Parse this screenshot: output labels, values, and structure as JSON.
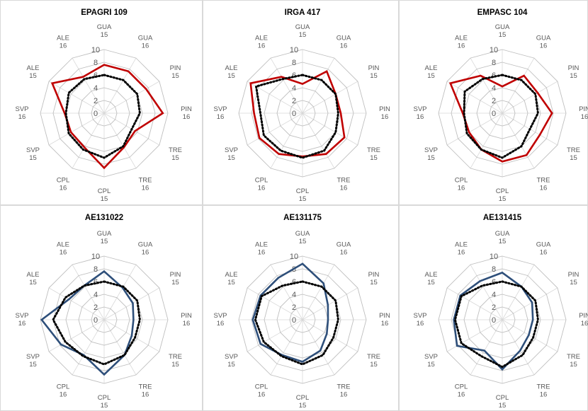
{
  "chart_data": [
    {
      "type": "radar",
      "title": "EPAGRI 109",
      "categories": [
        "GUA\n15",
        "GUA\n16",
        "PIN\n15",
        "PIN\n16",
        "TRE\n15",
        "TRE\n16",
        "CPL\n15",
        "CPL\n16",
        "SVP\n15",
        "SVP\n16",
        "ALE\n15",
        "ALE\n16"
      ],
      "rlim": [
        0,
        10
      ],
      "rticks": [
        0,
        2,
        4,
        6,
        8,
        10
      ],
      "series": [
        {
          "style": "solid",
          "color": "#c00000",
          "values": [
            7.6,
            7.6,
            7.6,
            9.2,
            5.6,
            6.2,
            8.6,
            6.2,
            6.0,
            6.2,
            9.4,
            6.6
          ]
        },
        {
          "style": "dotted",
          "color": "#000000",
          "values": [
            6.0,
            6.0,
            6.0,
            5.6,
            5.0,
            6.0,
            7.0,
            6.6,
            6.4,
            6.0,
            6.4,
            6.2
          ]
        }
      ]
    },
    {
      "type": "radar",
      "title": "IRGA 417",
      "categories": [
        "GUA\n15",
        "GUA\n16",
        "PIN\n15",
        "PIN\n16",
        "TRE\n15",
        "TRE\n16",
        "CPL\n15",
        "CPL\n16",
        "SVP\n15",
        "SVP\n16",
        "ALE\n15",
        "ALE\n16"
      ],
      "rlim": [
        0,
        10
      ],
      "rticks": [
        0,
        2,
        4,
        6,
        8,
        10
      ],
      "series": [
        {
          "style": "solid",
          "color": "#c00000",
          "values": [
            4.6,
            7.6,
            6.0,
            6.0,
            7.6,
            7.4,
            6.8,
            7.4,
            7.8,
            7.6,
            9.4,
            6.6
          ]
        },
        {
          "style": "dotted",
          "color": "#000000",
          "values": [
            6.0,
            6.0,
            6.0,
            5.6,
            6.0,
            6.8,
            7.0,
            6.8,
            7.0,
            6.6,
            8.4,
            6.2
          ]
        }
      ]
    },
    {
      "type": "radar",
      "title": "EMPASC 104",
      "categories": [
        "GUA\n15",
        "GUA\n16",
        "PIN\n15",
        "PIN\n16",
        "TRE\n15",
        "TRE\n16",
        "CPL\n15",
        "CPL\n16",
        "SVP\n15",
        "SVP\n16",
        "ALE\n15",
        "ALE\n16"
      ],
      "rlim": [
        0,
        10
      ],
      "rticks": [
        0,
        2,
        4,
        6,
        8,
        10
      ],
      "series": [
        {
          "style": "solid",
          "color": "#c00000",
          "values": [
            4.2,
            6.8,
            6.4,
            7.8,
            6.8,
            7.6,
            7.6,
            6.6,
            6.0,
            6.2,
            9.4,
            6.8
          ]
        },
        {
          "style": "dotted",
          "color": "#000000",
          "values": [
            6.0,
            6.0,
            6.0,
            5.6,
            5.0,
            6.0,
            7.0,
            6.6,
            6.4,
            6.0,
            6.8,
            6.2
          ]
        }
      ]
    },
    {
      "type": "radar",
      "title": "AE131022",
      "categories": [
        "GUA\n15",
        "GUA\n16",
        "PIN\n15",
        "PIN\n16",
        "TRE\n15",
        "TRE\n16",
        "CPL\n15",
        "CPL\n16",
        "SVP\n15",
        "SVP\n16",
        "ALE\n15",
        "ALE\n16"
      ],
      "rlim": [
        0,
        10
      ],
      "rticks": [
        0,
        2,
        4,
        6,
        8,
        10
      ],
      "series": [
        {
          "style": "solid",
          "color": "#2e4f7a",
          "values": [
            7.6,
            5.8,
            5.2,
            4.6,
            5.0,
            6.4,
            8.6,
            6.4,
            7.8,
            9.8,
            6.4,
            6.2
          ]
        },
        {
          "style": "dotted",
          "color": "#000000",
          "values": [
            6.0,
            6.0,
            6.0,
            5.6,
            5.6,
            6.4,
            7.0,
            6.6,
            7.0,
            8.0,
            7.0,
            6.2
          ]
        }
      ]
    },
    {
      "type": "radar",
      "title": "AE131175",
      "categories": [
        "GUA\n15",
        "GUA\n16",
        "PIN\n15",
        "PIN\n16",
        "TRE\n15",
        "TRE\n16",
        "CPL\n15",
        "CPL\n16",
        "SVP\n15",
        "SVP\n16",
        "ALE\n15",
        "ALE\n16"
      ],
      "rlim": [
        0,
        10
      ],
      "rticks": [
        0,
        2,
        4,
        6,
        8,
        10
      ],
      "series": [
        {
          "style": "solid",
          "color": "#2e4f7a",
          "values": [
            8.8,
            6.6,
            4.6,
            4.0,
            4.4,
            5.6,
            6.6,
            6.4,
            7.6,
            7.8,
            7.6,
            7.6
          ]
        },
        {
          "style": "dotted",
          "color": "#000000",
          "values": [
            6.0,
            6.0,
            6.0,
            5.6,
            5.6,
            6.4,
            7.0,
            6.6,
            7.0,
            7.4,
            7.4,
            6.2
          ]
        }
      ]
    },
    {
      "type": "radar",
      "title": "AE131415",
      "categories": [
        "GUA\n15",
        "GUA\n16",
        "PIN\n15",
        "PIN\n16",
        "TRE\n15",
        "TRE\n16",
        "CPL\n15",
        "CPL\n16",
        "SVP\n15",
        "SVP\n16",
        "ALE\n15",
        "ALE\n16"
      ],
      "rlim": [
        0,
        10
      ],
      "rticks": [
        0,
        2,
        4,
        6,
        8,
        10
      ],
      "series": [
        {
          "style": "solid",
          "color": "#2e4f7a",
          "values": [
            7.4,
            6.0,
            5.4,
            4.8,
            4.8,
            5.6,
            7.8,
            5.6,
            8.2,
            7.6,
            7.6,
            7.0
          ]
        },
        {
          "style": "dotted",
          "color": "#000000",
          "values": [
            6.0,
            6.0,
            6.0,
            5.6,
            5.6,
            6.4,
            7.4,
            6.6,
            7.4,
            7.4,
            7.4,
            6.2
          ]
        }
      ]
    }
  ]
}
